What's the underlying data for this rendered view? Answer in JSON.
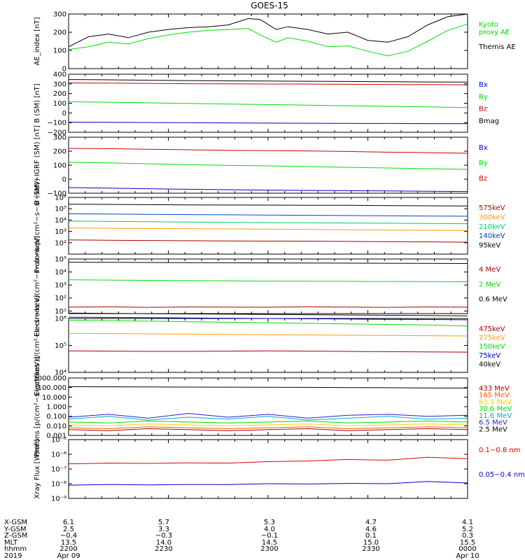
{
  "title": "GOES-15",
  "chart_data": [
    {
      "type": "line",
      "ylabel": "AE_index [nT]",
      "ylim": [
        0,
        300
      ],
      "yticks": [
        {
          "v": 0,
          "t": "0"
        },
        {
          "v": 100,
          "t": "100"
        },
        {
          "v": 200,
          "t": "200"
        },
        {
          "v": 300,
          "t": "300"
        }
      ],
      "x": [
        0,
        0.05,
        0.1,
        0.15,
        0.2,
        0.25,
        0.3,
        0.35,
        0.4,
        0.45,
        0.48,
        0.52,
        0.55,
        0.6,
        0.65,
        0.7,
        0.75,
        0.8,
        0.85,
        0.9,
        0.95,
        1.0
      ],
      "series": [
        {
          "name": "Kyoto\nproxy AE",
          "color": "#00dd00",
          "values": [
            105,
            120,
            145,
            135,
            165,
            185,
            200,
            210,
            215,
            220,
            185,
            145,
            170,
            150,
            120,
            125,
            95,
            70,
            95,
            150,
            210,
            245
          ]
        },
        {
          "name": "Themis AE",
          "color": "#000000",
          "values": [
            120,
            175,
            190,
            170,
            200,
            215,
            225,
            230,
            240,
            275,
            270,
            215,
            230,
            215,
            190,
            200,
            155,
            145,
            175,
            240,
            285,
            300
          ]
        }
      ]
    },
    {
      "type": "line",
      "ylabel": "B (SM) [nT]",
      "ylim": [
        -200,
        400
      ],
      "yticks": [
        {
          "v": -200,
          "t": "−200"
        },
        {
          "v": -100,
          "t": "−100"
        },
        {
          "v": 0,
          "t": "0"
        },
        {
          "v": 100,
          "t": "100"
        },
        {
          "v": 200,
          "t": "200"
        },
        {
          "v": 300,
          "t": "300"
        },
        {
          "v": 400,
          "t": "400"
        }
      ],
      "x": [
        0,
        0.1,
        0.2,
        0.3,
        0.4,
        0.5,
        0.6,
        0.7,
        0.8,
        0.9,
        1.0
      ],
      "series": [
        {
          "name": "Bx",
          "color": "#0000cc",
          "values": [
            -95,
            -97,
            -99,
            -101,
            -103,
            -105,
            -107,
            -108,
            -109,
            -110,
            -110
          ]
        },
        {
          "name": "By",
          "color": "#00dd00",
          "values": [
            115,
            110,
            104,
            98,
            92,
            86,
            80,
            74,
            68,
            62,
            55
          ]
        },
        {
          "name": "Bz",
          "color": "#cc0000",
          "values": [
            310,
            308,
            305,
            302,
            300,
            299,
            298,
            296,
            294,
            292,
            290
          ]
        },
        {
          "name": "Bmag",
          "color": "#000000",
          "values": [
            345,
            342,
            338,
            334,
            331,
            329,
            327,
            325,
            322,
            320,
            318
          ]
        }
      ]
    },
    {
      "type": "line",
      "ylabel": "B (SM)−IGRF (SM) [nT]",
      "ylim": [
        -100,
        300
      ],
      "yticks": [
        {
          "v": -100,
          "t": "−100"
        },
        {
          "v": 0,
          "t": "0"
        },
        {
          "v": 100,
          "t": "100"
        },
        {
          "v": 200,
          "t": "200"
        },
        {
          "v": 300,
          "t": "300"
        }
      ],
      "x": [
        0,
        0.1,
        0.2,
        0.3,
        0.4,
        0.5,
        0.6,
        0.7,
        0.8,
        0.9,
        1.0
      ],
      "series": [
        {
          "name": "Bx",
          "color": "#0000cc",
          "values": [
            -60,
            -64,
            -68,
            -72,
            -75,
            -78,
            -80,
            -82,
            -84,
            -86,
            -88
          ]
        },
        {
          "name": "By",
          "color": "#00dd00",
          "values": [
            120,
            116,
            110,
            104,
            99,
            95,
            90,
            85,
            80,
            75,
            70
          ]
        },
        {
          "name": "Bz",
          "color": "#cc0000",
          "values": [
            220,
            218,
            214,
            210,
            206,
            204,
            202,
            198,
            193,
            190,
            185
          ]
        }
      ]
    },
    {
      "type": "line",
      "ylabel": "Protons p/(cm²−s−sr−keV)",
      "ylim": [
        1,
        6
      ],
      "log": true,
      "yticks": [
        {
          "v": 2,
          "t": "10²"
        },
        {
          "v": 3,
          "t": "10³"
        },
        {
          "v": 4,
          "t": "10⁴"
        },
        {
          "v": 5,
          "t": "10⁵"
        },
        {
          "v": 6,
          "t": "10⁶"
        }
      ],
      "x": [
        0,
        0.1,
        0.2,
        0.3,
        0.4,
        0.5,
        0.6,
        0.7,
        0.8,
        0.9,
        1.0
      ],
      "series": [
        {
          "name": "575keV",
          "color": "#aa0000",
          "values": [
            2.25,
            2.22,
            2.2,
            2.18,
            2.16,
            2.15,
            2.14,
            2.12,
            2.1,
            2.08,
            2.05
          ]
        },
        {
          "name": "300keV",
          "color": "#ff9900",
          "values": [
            3.3,
            3.28,
            3.26,
            3.24,
            3.22,
            3.2,
            3.18,
            3.15,
            3.12,
            3.1,
            3.08
          ]
        },
        {
          "name": "210keV",
          "color": "#00cc66",
          "values": [
            3.9,
            3.88,
            3.85,
            3.82,
            3.8,
            3.78,
            3.76,
            3.74,
            3.72,
            3.7,
            3.68
          ]
        },
        {
          "name": "140keV",
          "color": "#0044cc",
          "values": [
            4.55,
            4.53,
            4.5,
            4.48,
            4.46,
            4.44,
            4.42,
            4.4,
            4.38,
            4.36,
            4.34
          ]
        },
        {
          "name": "95keV",
          "color": "#000000",
          "values": [
            5.4,
            5.38,
            5.36,
            5.34,
            5.33,
            5.32,
            5.31,
            5.3,
            5.28,
            5.26,
            5.24
          ]
        }
      ]
    },
    {
      "type": "line",
      "ylabel": "Electrons e/(cm²−s−sr−keV)",
      "ylim": [
        0.8,
        5
      ],
      "log": true,
      "yticks": [
        {
          "v": 1,
          "t": "10¹"
        },
        {
          "v": 2,
          "t": "10²"
        },
        {
          "v": 3,
          "t": "10³"
        },
        {
          "v": 4,
          "t": "10⁴"
        },
        {
          "v": 5,
          "t": "10⁵"
        }
      ],
      "x": [
        0,
        0.1,
        0.2,
        0.3,
        0.4,
        0.5,
        0.6,
        0.7,
        0.8,
        0.9,
        1.0
      ],
      "series": [
        {
          "name": "4 MeV",
          "color": "#aa0000",
          "values": [
            1.3,
            1.32,
            1.28,
            1.31,
            1.3,
            1.29,
            1.32,
            1.3,
            1.28,
            1.31,
            1.3
          ]
        },
        {
          "name": "2 MeV",
          "color": "#00dd00",
          "values": [
            3.4,
            3.38,
            3.36,
            3.34,
            3.32,
            3.3,
            3.29,
            3.28,
            3.27,
            3.26,
            3.25
          ]
        },
        {
          "name": "0.6 MeV",
          "color": "#000000",
          "values": [
            4.75,
            4.74,
            4.73,
            4.72,
            4.71,
            4.7,
            4.69,
            4.68,
            4.67,
            4.66,
            4.65
          ]
        }
      ]
    },
    {
      "type": "line",
      "ylabel": "Electrons e/(cm²−s−sr−keV)",
      "ylim": [
        4,
        6
      ],
      "log": true,
      "yticks": [
        {
          "v": 4,
          "t": "10⁴"
        },
        {
          "v": 5,
          "t": "10⁵"
        },
        {
          "v": 6,
          "t": "10⁶"
        }
      ],
      "x": [
        0,
        0.1,
        0.2,
        0.3,
        0.4,
        0.5,
        0.6,
        0.7,
        0.8,
        0.9,
        1.0
      ],
      "series": [
        {
          "name": "475keV",
          "color": "#aa0000",
          "values": [
            4.8,
            4.79,
            4.78,
            4.78,
            4.79,
            4.8,
            4.79,
            4.78,
            4.77,
            4.76,
            4.75
          ]
        },
        {
          "name": "275keV",
          "color": "#ff9900",
          "values": [
            5.45,
            5.44,
            5.43,
            5.42,
            5.41,
            5.4,
            5.39,
            5.38,
            5.37,
            5.36,
            5.35
          ]
        },
        {
          "name": "150keV",
          "color": "#00dd00",
          "values": [
            5.93,
            5.92,
            5.9,
            5.88,
            5.86,
            5.84,
            5.82,
            5.8,
            5.78,
            5.76,
            5.72
          ]
        },
        {
          "name": "75keV",
          "color": "#0000cc",
          "values": [
            6.05,
            6.04,
            6.03,
            6.02,
            6.01,
            6.0,
            5.99,
            5.98,
            5.97,
            5.96,
            5.95
          ]
        },
        {
          "name": "40keV",
          "color": "#000000",
          "values": [
            6.2,
            6.19,
            6.18,
            6.17,
            6.16,
            6.15,
            6.14,
            6.13,
            6.12,
            6.11,
            6.1
          ]
        }
      ]
    },
    {
      "type": "line",
      "ylabel": "Protons [p/(cm²−s−sr−keV)]",
      "ylim": [
        -3,
        3
      ],
      "log": true,
      "yticks": [
        {
          "v": -3,
          "t": "0.001"
        },
        {
          "v": -2,
          "t": "0.010"
        },
        {
          "v": -1,
          "t": "0.100"
        },
        {
          "v": 0,
          "t": "1.000"
        },
        {
          "v": 1,
          "t": "10.000"
        },
        {
          "v": 2,
          "t": "100.000"
        },
        {
          "v": 3,
          "t": "1000.000"
        }
      ],
      "x": [
        0,
        0.1,
        0.2,
        0.3,
        0.4,
        0.5,
        0.6,
        0.7,
        0.8,
        0.9,
        1.0
      ],
      "series": [
        {
          "name": "433 MeV",
          "color": "#aa0000",
          "values": [
            -2.4,
            -2.5,
            -2.3,
            -2.4,
            -2.5,
            -2.4,
            -2.3,
            -2.5,
            -2.4,
            -2.3,
            -2.4
          ]
        },
        {
          "name": "165 MeV",
          "color": "#ff5500",
          "values": [
            -2.2,
            -2.3,
            -2.1,
            -2.2,
            -2.3,
            -2.2,
            -2.1,
            -2.3,
            -2.2,
            -2.1,
            -2.2
          ]
        },
        {
          "name": "63.1 MeV",
          "color": "#ffcc00",
          "values": [
            -1.9,
            -2.0,
            -1.8,
            -1.9,
            -2.0,
            -1.9,
            -1.8,
            -2.0,
            -1.9,
            -1.8,
            -1.9
          ]
        },
        {
          "name": "30.6 MeV",
          "color": "#00dd00",
          "values": [
            -1.6,
            -1.7,
            -1.5,
            -1.6,
            -1.7,
            -1.6,
            -1.5,
            -1.7,
            -1.6,
            -1.5,
            -1.6
          ]
        },
        {
          "name": "11.6 MeV",
          "color": "#00aacc",
          "values": [
            -1.3,
            -1.0,
            -1.4,
            -1.1,
            -1.3,
            -1.0,
            -1.4,
            -1.2,
            -1.0,
            -1.3,
            -1.2
          ]
        },
        {
          "name": "6.5 MeV",
          "color": "#2222cc",
          "values": [
            -1.1,
            -0.8,
            -1.2,
            -0.7,
            -1.1,
            -0.8,
            -1.2,
            -0.9,
            -0.8,
            -1.0,
            -0.9
          ]
        },
        {
          "name": "2.5 MeV",
          "color": "#000000",
          "values": [
            2.1,
            2.08,
            2.06,
            2.05,
            2.04,
            2.03,
            2.02,
            2.0,
            1.98,
            1.96,
            1.95
          ]
        }
      ]
    },
    {
      "type": "line",
      "ylabel": "Xray Flux [W/m²]",
      "ylim": [
        -9,
        -5
      ],
      "log": true,
      "yticks": [
        {
          "v": -9,
          "t": "10⁻⁹"
        },
        {
          "v": -8,
          "t": "10⁻⁸"
        },
        {
          "v": -7,
          "t": "10⁻⁷"
        },
        {
          "v": -6,
          "t": "10⁻⁶"
        },
        {
          "v": -5,
          "t": "10⁻⁵"
        }
      ],
      "x": [
        0,
        0.1,
        0.2,
        0.3,
        0.4,
        0.5,
        0.6,
        0.7,
        0.8,
        0.9,
        1.0
      ],
      "series": [
        {
          "name": "0.1−0.8 nm",
          "color": "#dd0000",
          "values": [
            -6.65,
            -6.6,
            -6.62,
            -6.58,
            -6.6,
            -6.5,
            -6.45,
            -6.35,
            -6.4,
            -6.2,
            -6.3
          ]
        },
        {
          "name": "0.05−0.4 nm",
          "color": "#0000cc",
          "values": [
            -8.1,
            -8.05,
            -8.08,
            -8.05,
            -8.06,
            -8.0,
            -8.02,
            -7.98,
            -8.0,
            -7.85,
            -7.95
          ]
        }
      ]
    }
  ],
  "footer": {
    "rows": [
      {
        "label": "X-GSM",
        "values": [
          "6.1",
          "5.7",
          "5.3",
          "4.7",
          "4.1"
        ]
      },
      {
        "label": "Y-GSM",
        "values": [
          "2.5",
          "3.3",
          "4.0",
          "4.6",
          "5.2"
        ]
      },
      {
        "label": "Z-GSM",
        "values": [
          "−0.4",
          "−0.3",
          "−0.1",
          "0.1",
          "0.3"
        ]
      },
      {
        "label": "MLT",
        "values": [
          "13.5",
          "14.0",
          "14.5",
          "15.0",
          "15.5"
        ]
      },
      {
        "label": "hhmm",
        "values": [
          "2200",
          "2230",
          "2300",
          "2330",
          "0000"
        ]
      },
      {
        "label": "2019",
        "values": [
          "Apr 09",
          "",
          "",
          "",
          "Apr 10"
        ]
      }
    ]
  }
}
